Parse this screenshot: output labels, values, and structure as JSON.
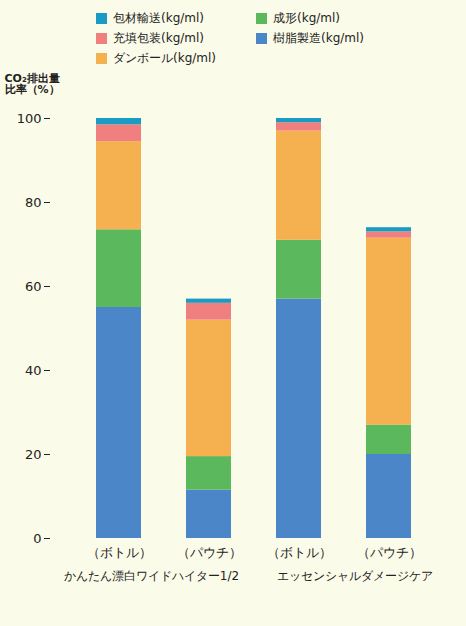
{
  "chart_data": {
    "type": "bar",
    "stacked": true,
    "ylabel": "CO₂排出量\n比率（%）",
    "categories": [
      "（ボトル）",
      "（パウチ）",
      "（ボトル）",
      "（パウチ）"
    ],
    "group_labels": [
      "かんたん漂白ワイドハイター1/2",
      "エッセンシャルダメージケア"
    ],
    "series": [
      {
        "name": "樹脂製造(kg/ml)",
        "color": "#4a86c8",
        "values": [
          55,
          11.5,
          57,
          20
        ]
      },
      {
        "name": "成形(kg/ml)",
        "color": "#5cb85c",
        "values": [
          18.5,
          8,
          14,
          7
        ]
      },
      {
        "name": "ダンボール(kg/ml)",
        "color": "#f5b050",
        "values": [
          21,
          32.5,
          26,
          44.5
        ]
      },
      {
        "name": "充填包装(kg/ml)",
        "color": "#f08080",
        "values": [
          4,
          4,
          2,
          1.5
        ]
      },
      {
        "name": "包材輸送(kg/ml)",
        "color": "#1a9bc4",
        "values": [
          1.5,
          1,
          1,
          1
        ]
      }
    ],
    "ylim": [
      0,
      100
    ],
    "yticks": [
      0,
      20,
      40,
      60,
      80,
      100
    ],
    "grid": false,
    "legend": "top"
  }
}
